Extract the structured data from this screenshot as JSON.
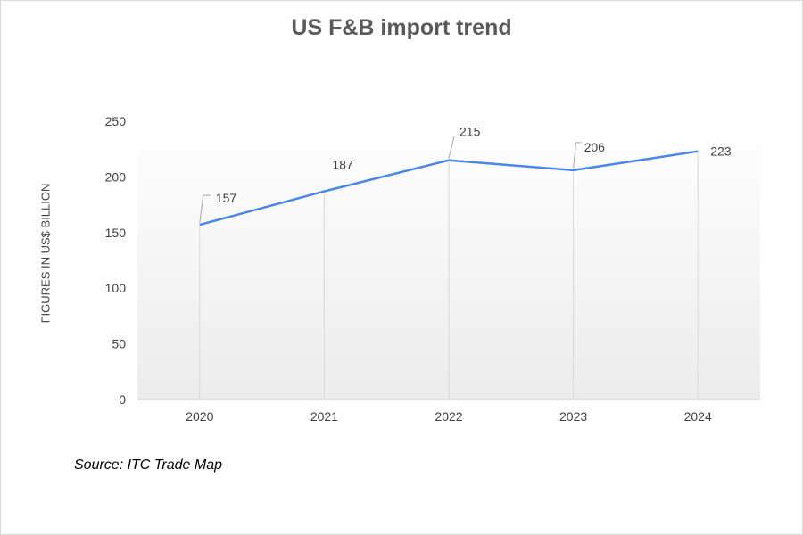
{
  "chart_data": {
    "type": "line",
    "title": "US F&B import trend",
    "ylabel": "FIGURES IN US$ BILLION",
    "xlabel": "",
    "categories": [
      "2020",
      "2021",
      "2022",
      "2023",
      "2024"
    ],
    "series": [
      {
        "values": [
          157,
          187,
          215,
          206,
          223
        ],
        "color": "#4a86e8"
      }
    ],
    "data_labels": [
      "157",
      "187",
      "215",
      "206",
      "223"
    ],
    "ylim": [
      0,
      250
    ],
    "yticks": [
      0,
      50,
      100,
      150,
      200,
      250
    ],
    "grid": false,
    "legend": "none"
  },
  "source": "Source: ITC Trade Map",
  "colors": {
    "line": "#4a86e8",
    "text": "#404040",
    "title": "#595959",
    "axis": "#bfbfbf"
  }
}
